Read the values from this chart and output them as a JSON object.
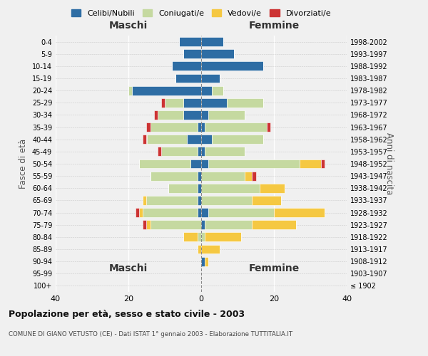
{
  "title": "Popolazione per età, sesso e stato civile - 2003",
  "subtitle": "COMUNE DI GIANO VETUSTO (CE) - Dati ISTAT 1° gennaio 2003 - Elaborazione TUTTITALIA.IT",
  "ylabel_left": "Fasce di età",
  "ylabel_right": "Anni di nascita",
  "maschi_label": "Maschi",
  "femmine_label": "Femmine",
  "legend_labels": [
    "Celibi/Nubili",
    "Coniugati/e",
    "Vedovi/e",
    "Divorziati/e"
  ],
  "colors": {
    "celibi": "#2e6da4",
    "coniugati": "#c5d9a0",
    "vedovi": "#f5c842",
    "divorziati": "#cc3333"
  },
  "age_groups": [
    "100+",
    "95-99",
    "90-94",
    "85-89",
    "80-84",
    "75-79",
    "70-74",
    "65-69",
    "60-64",
    "55-59",
    "50-54",
    "45-49",
    "40-44",
    "35-39",
    "30-34",
    "25-29",
    "20-24",
    "15-19",
    "10-14",
    "5-9",
    "0-4"
  ],
  "birth_years": [
    "≤ 1902",
    "1903-1907",
    "1908-1912",
    "1913-1917",
    "1918-1922",
    "1923-1927",
    "1928-1932",
    "1933-1937",
    "1938-1942",
    "1943-1947",
    "1948-1952",
    "1953-1957",
    "1958-1962",
    "1963-1967",
    "1968-1972",
    "1973-1977",
    "1978-1982",
    "1983-1987",
    "1988-1992",
    "1993-1997",
    "1998-2002"
  ],
  "maschi": {
    "celibi": [
      0,
      0,
      0,
      0,
      0,
      0,
      1,
      1,
      1,
      1,
      3,
      1,
      4,
      1,
      5,
      5,
      19,
      7,
      8,
      5,
      6
    ],
    "coniugati": [
      0,
      0,
      0,
      0,
      1,
      14,
      15,
      14,
      8,
      13,
      14,
      10,
      11,
      13,
      7,
      5,
      1,
      0,
      0,
      0,
      0
    ],
    "vedovi": [
      0,
      0,
      0,
      1,
      4,
      1,
      1,
      1,
      0,
      0,
      0,
      0,
      0,
      0,
      0,
      0,
      0,
      0,
      0,
      0,
      0
    ],
    "divorziati": [
      0,
      0,
      0,
      0,
      0,
      1,
      1,
      0,
      0,
      0,
      0,
      1,
      1,
      1,
      1,
      1,
      0,
      0,
      0,
      0,
      0
    ]
  },
  "femmine": {
    "nubili": [
      0,
      0,
      1,
      0,
      0,
      1,
      2,
      0,
      0,
      0,
      2,
      1,
      3,
      1,
      2,
      7,
      3,
      5,
      17,
      9,
      6
    ],
    "coniugate": [
      0,
      0,
      0,
      0,
      1,
      13,
      18,
      14,
      16,
      12,
      25,
      11,
      14,
      17,
      10,
      10,
      3,
      0,
      0,
      0,
      0
    ],
    "vedove": [
      0,
      0,
      1,
      5,
      10,
      12,
      14,
      8,
      7,
      2,
      6,
      0,
      0,
      0,
      0,
      0,
      0,
      0,
      0,
      0,
      0
    ],
    "divorziate": [
      0,
      0,
      0,
      0,
      0,
      0,
      0,
      0,
      0,
      1,
      1,
      0,
      0,
      1,
      0,
      0,
      0,
      0,
      0,
      0,
      0
    ]
  },
  "xlim": 40,
  "background_color": "#f0f0f0",
  "bar_edge_color": "white"
}
